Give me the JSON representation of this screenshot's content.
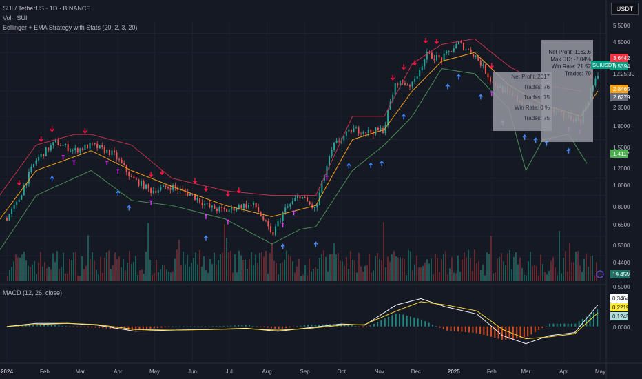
{
  "header": {
    "symbol_line": "SUI / TetherUS · 1D · BINANCE",
    "volume_line": "Vol · SUI",
    "strategy_line": "Bollinger + EMA Strategy with Stats (20, 2, 3, 20)",
    "currency": "USDT",
    "macd_line": "MACD (12, 26, close)"
  },
  "price_axis": {
    "ticks": [
      "5.5000",
      "4.5000",
      "3.6442",
      "3.5394",
      "12:25:30",
      "2.8465",
      "2.6279",
      "2.3000",
      "1.8000",
      "1.5000",
      "1.4117",
      "1.2000",
      "1.0000",
      "0.8000",
      "0.6500",
      "0.5300",
      "0.4400"
    ],
    "last_price": "3.5394",
    "countdown": "12:25:30",
    "symbol_tag": "SUIUSDT",
    "volume_value": "19.45M",
    "badges": [
      {
        "text": "3.6442",
        "color": "#f23645"
      },
      {
        "text": "3.5394",
        "color": "#089981"
      },
      {
        "text": "2.8465",
        "color": "#f7a21b"
      },
      {
        "text": "2.6279",
        "color": "#6b6f7b"
      },
      {
        "text": "1.4117",
        "color": "#4caf50"
      }
    ]
  },
  "macd_axis": {
    "ticks": [
      "0.5000",
      "0.0000"
    ],
    "badges": [
      {
        "text": "0.3464",
        "color": "#ffffff"
      },
      {
        "text": "0.2219",
        "color": "#ffeb3b"
      },
      {
        "text": "0.1245",
        "color": "#b2dfdb"
      }
    ]
  },
  "time_axis": [
    "2024",
    "Feb",
    "Mar",
    "Apr",
    "May",
    "Jun",
    "Jul",
    "Aug",
    "Sep",
    "Oct",
    "Nov",
    "Dec",
    "2025",
    "Feb",
    "Mar",
    "Apr",
    "May"
  ],
  "stats_box": {
    "lines": [
      "Net Profit: 1162.6",
      "Max DD: -7.04%",
      "Win Rate: 21.52",
      "Trades: 79"
    ],
    "ghost_lines": [
      "Net Profit: 2017",
      "Trades: 76",
      "Trades: 75",
      "Win Rate: 0 %",
      "Trades: 75"
    ]
  },
  "chart_data": {
    "type": "line",
    "scale": "log",
    "x_start": "2024-01-01",
    "x_end": "2025-04-29",
    "ylim": [
      0.4,
      6.2
    ],
    "price_series": {
      "dates": [
        "2023-12-20",
        "2024-01-10",
        "2024-01-25",
        "2024-02-10",
        "2024-02-25",
        "2024-03-10",
        "2024-03-28",
        "2024-04-12",
        "2024-04-28",
        "2024-05-15",
        "2024-06-01",
        "2024-06-15",
        "2024-06-28",
        "2024-07-12",
        "2024-07-22",
        "2024-08-05",
        "2024-08-15",
        "2024-08-28",
        "2024-09-10",
        "2024-09-25",
        "2024-10-10",
        "2024-10-25",
        "2024-11-05",
        "2024-11-15",
        "2024-11-28",
        "2024-12-10",
        "2024-12-22",
        "2025-01-05",
        "2025-01-18",
        "2025-02-01",
        "2025-02-15",
        "2025-03-01",
        "2025-03-15",
        "2025-04-01",
        "2025-04-15",
        "2025-04-29"
      ],
      "values": [
        0.6,
        0.93,
        1.45,
        1.75,
        1.6,
        1.7,
        1.55,
        1.2,
        1.05,
        1.1,
        1.0,
        0.88,
        0.85,
        0.9,
        0.9,
        0.65,
        0.85,
        1.0,
        0.85,
        1.7,
        2.0,
        1.95,
        2.0,
        3.3,
        3.2,
        4.4,
        4.2,
        4.95,
        4.4,
        3.3,
        2.9,
        2.6,
        2.5,
        2.3,
        2.2,
        3.54
      ]
    },
    "series": [
      {
        "name": "EMA",
        "dates": [
          "2023-12-20",
          "2024-01-25",
          "2024-03-10",
          "2024-04-12",
          "2024-05-15",
          "2024-06-28",
          "2024-08-05",
          "2024-09-10",
          "2024-10-10",
          "2024-11-05",
          "2024-11-28",
          "2024-12-22",
          "2025-01-18",
          "2025-02-15",
          "2025-03-15",
          "2025-04-15",
          "2025-04-29"
        ],
        "values": [
          0.7,
          1.3,
          1.6,
          1.3,
          1.1,
          0.9,
          0.8,
          0.9,
          1.8,
          2.0,
          3.0,
          4.1,
          4.5,
          3.2,
          2.6,
          2.3,
          3.0
        ]
      },
      {
        "name": "Upper Band",
        "dates": [
          "2023-12-20",
          "2024-01-25",
          "2024-02-25",
          "2024-03-10",
          "2024-04-12",
          "2024-05-15",
          "2024-06-28",
          "2024-08-05",
          "2024-09-10",
          "2024-10-10",
          "2024-11-05",
          "2024-11-28",
          "2024-12-22",
          "2025-01-18",
          "2025-02-15",
          "2025-03-15",
          "2025-04-15"
        ],
        "values": [
          0.9,
          1.7,
          1.9,
          1.9,
          1.7,
          1.2,
          1.05,
          1.0,
          1.0,
          2.3,
          2.3,
          4.0,
          4.9,
          5.2,
          3.9,
          3.2,
          3.0
        ]
      },
      {
        "name": "Lower Band",
        "dates": [
          "2023-12-20",
          "2024-01-25",
          "2024-03-10",
          "2024-04-12",
          "2024-05-15",
          "2024-06-28",
          "2024-08-05",
          "2024-08-28",
          "2024-09-10",
          "2024-10-10",
          "2024-11-05",
          "2024-11-28",
          "2024-12-22",
          "2025-01-18",
          "2025-02-15",
          "2025-03-01",
          "2025-03-15",
          "2025-04-05",
          "2025-04-20"
        ],
        "values": [
          0.5,
          1.0,
          1.3,
          0.95,
          0.9,
          0.78,
          0.6,
          0.7,
          0.72,
          1.3,
          1.7,
          2.3,
          3.8,
          3.6,
          2.5,
          1.3,
          1.8,
          1.9,
          1.4
        ]
      }
    ],
    "macd": {
      "ylim": [
        -0.35,
        0.6
      ],
      "dates": [
        "2024-01-01",
        "2024-01-25",
        "2024-02-20",
        "2024-03-15",
        "2024-04-15",
        "2024-05-15",
        "2024-06-15",
        "2024-07-15",
        "2024-08-10",
        "2024-09-01",
        "2024-10-01",
        "2024-10-20",
        "2024-11-15",
        "2024-12-05",
        "2024-12-25",
        "2025-01-20",
        "2025-02-10",
        "2025-03-01",
        "2025-03-20",
        "2025-04-10",
        "2025-04-29"
      ],
      "macd": [
        0.0,
        0.05,
        0.05,
        0.02,
        -0.08,
        -0.06,
        -0.05,
        -0.03,
        -0.08,
        -0.03,
        0.04,
        0.02,
        0.35,
        0.45,
        0.32,
        0.2,
        -0.15,
        -0.28,
        -0.15,
        -0.1,
        0.35
      ],
      "signal": [
        0.0,
        0.03,
        0.05,
        0.03,
        -0.05,
        -0.06,
        -0.05,
        -0.04,
        -0.06,
        -0.04,
        0.02,
        0.03,
        0.25,
        0.4,
        0.35,
        0.25,
        -0.05,
        -0.2,
        -0.17,
        -0.12,
        0.22
      ]
    }
  }
}
